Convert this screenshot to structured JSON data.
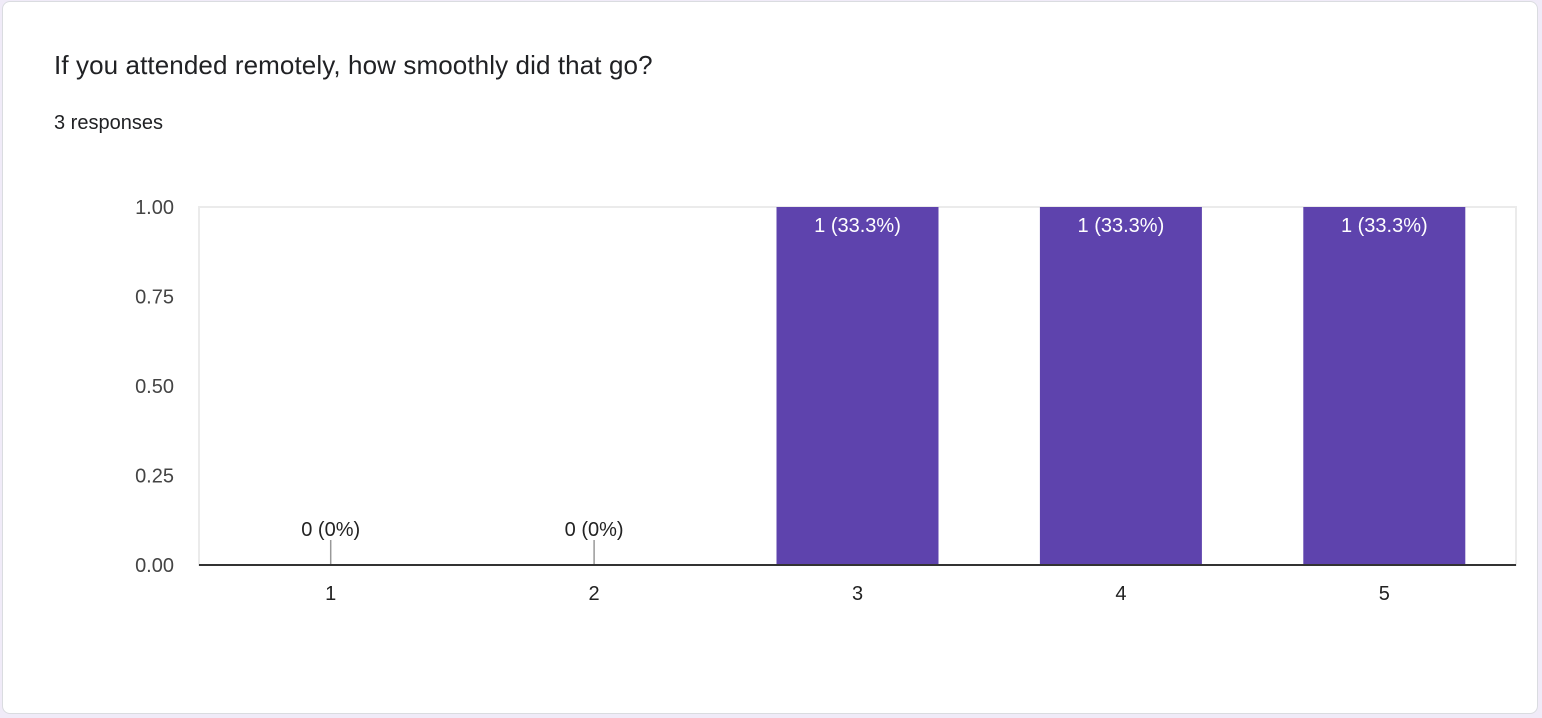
{
  "question": {
    "title": "If you attended remotely, how smoothly did that go?",
    "responses": "3 responses"
  },
  "chart_data": {
    "type": "bar",
    "categories": [
      "1",
      "2",
      "3",
      "4",
      "5"
    ],
    "values": [
      0,
      0,
      1,
      1,
      1
    ],
    "data_labels": [
      "0 (0%)",
      "0 (0%)",
      "1 (33.3%)",
      "1 (33.3%)",
      "1 (33.3%)"
    ],
    "ylim": [
      0,
      1
    ],
    "yticks": [
      "0.00",
      "0.25",
      "0.50",
      "0.75",
      "1.00"
    ],
    "grid": false,
    "bar_color": "#5e43ad"
  }
}
